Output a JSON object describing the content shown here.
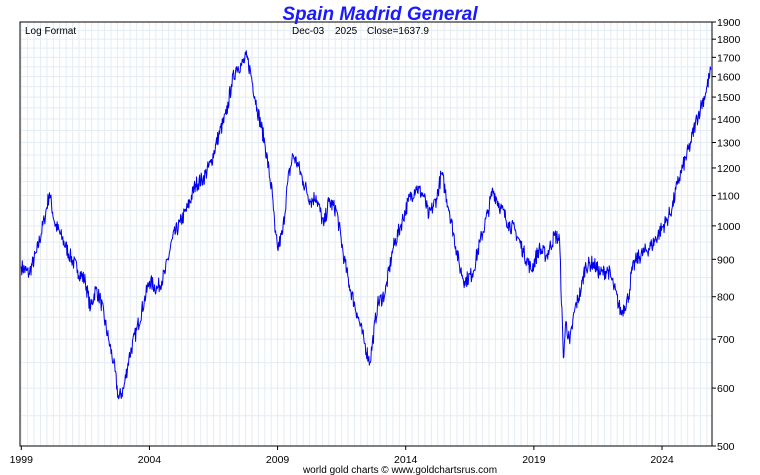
{
  "chart_data": {
    "type": "line",
    "title": "Spain Madrid General",
    "scale_note": "Log Format",
    "last_date": "Dec-03",
    "last_year": "2025",
    "close_text": "Close=1637.9",
    "footer": "world gold charts © www.goldchartsrus.com",
    "x_ticks": [
      "1999",
      "2004",
      "2009",
      "2014",
      "2019",
      "2024"
    ],
    "x_range": [
      1998.95,
      2025.95
    ],
    "y_ticks": [
      500,
      600,
      700,
      800,
      900,
      1000,
      1100,
      1200,
      1300,
      1400,
      1500,
      1600,
      1700,
      1800,
      1900
    ],
    "y_range": [
      500,
      1900
    ],
    "y_scale": "log",
    "line_color": "#0000ee",
    "series": [
      {
        "name": "Madrid General Index",
        "x": [
          1999.0,
          1999.3,
          1999.6,
          1999.9,
          2000.1,
          2000.3,
          2000.6,
          2000.9,
          2001.2,
          2001.5,
          2001.7,
          2001.9,
          2002.1,
          2002.4,
          2002.6,
          2002.8,
          2003.0,
          2003.2,
          2003.5,
          2003.8,
          2004.0,
          2004.3,
          2004.6,
          2004.9,
          2005.2,
          2005.5,
          2005.8,
          2006.1,
          2006.4,
          2006.7,
          2007.0,
          2007.2,
          2007.4,
          2007.6,
          2007.8,
          2007.95,
          2008.2,
          2008.5,
          2008.8,
          2008.9,
          2009.0,
          2009.2,
          2009.4,
          2009.6,
          2009.8,
          2010.0,
          2010.3,
          2010.5,
          2010.8,
          2011.0,
          2011.3,
          2011.6,
          2011.8,
          2012.1,
          2012.4,
          2012.6,
          2012.9,
          2013.2,
          2013.5,
          2013.8,
          2014.1,
          2014.4,
          2014.7,
          2014.9,
          2015.2,
          2015.4,
          2015.7,
          2016.1,
          2016.3,
          2016.6,
          2016.9,
          2017.2,
          2017.4,
          2017.7,
          2018.0,
          2018.3,
          2018.6,
          2018.9,
          2019.2,
          2019.5,
          2019.8,
          2020.0,
          2020.15,
          2020.25,
          2020.4,
          2020.6,
          2020.85,
          2021.0,
          2021.3,
          2021.6,
          2021.9,
          2022.1,
          2022.4,
          2022.7,
          2022.8,
          2023.0,
          2023.3,
          2023.6,
          2023.9,
          2024.2,
          2024.4,
          2024.6,
          2024.8,
          2025.1,
          2025.3,
          2025.5,
          2025.7,
          2025.92
        ],
        "values": [
          880,
          860,
          920,
          1020,
          1110,
          1010,
          960,
          910,
          870,
          840,
          770,
          820,
          790,
          700,
          650,
          580,
          600,
          660,
          720,
          790,
          840,
          820,
          860,
          960,
          1010,
          1060,
          1140,
          1160,
          1220,
          1330,
          1420,
          1560,
          1650,
          1660,
          1700,
          1620,
          1450,
          1300,
          1100,
          980,
          930,
          980,
          1150,
          1250,
          1210,
          1150,
          1080,
          1100,
          1000,
          1080,
          1050,
          900,
          830,
          760,
          690,
          650,
          780,
          810,
          930,
          1000,
          1080,
          1130,
          1100,
          1030,
          1090,
          1180,
          1050,
          880,
          840,
          860,
          950,
          1040,
          1120,
          1060,
          1010,
          980,
          920,
          870,
          930,
          910,
          970,
          960,
          660,
          740,
          690,
          770,
          820,
          880,
          890,
          860,
          870,
          830,
          760,
          800,
          860,
          900,
          920,
          940,
          980,
          1020,
          1060,
          1140,
          1200,
          1290,
          1380,
          1450,
          1520,
          1637.9
        ]
      }
    ]
  }
}
